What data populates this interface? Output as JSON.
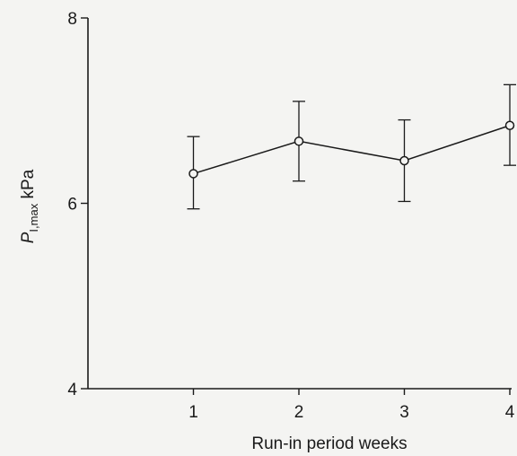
{
  "chart_data": {
    "type": "line",
    "title": "",
    "xlabel": "Run-in period  weeks",
    "ylabel_main": "P",
    "ylabel_sub": "I,max",
    "ylabel_unit": " kPa",
    "xlim": [
      0,
      4
    ],
    "ylim": [
      4,
      8
    ],
    "xticks": [
      1,
      2,
      3,
      4
    ],
    "xtick_labels": [
      "1",
      "2",
      "3",
      "4"
    ],
    "yticks": [
      4,
      6,
      8
    ],
    "ytick_labels": [
      "4",
      "6",
      "8"
    ],
    "grid": false,
    "legend": "none",
    "series": [
      {
        "x": [
          1,
          2,
          3,
          4
        ],
        "y": [
          6.32,
          6.67,
          6.46,
          6.84
        ],
        "err_low": [
          5.94,
          6.24,
          6.02,
          6.41
        ],
        "err_high": [
          6.72,
          7.1,
          6.9,
          7.28
        ],
        "marker": "open-circle",
        "color": "#1a1a1a"
      }
    ]
  }
}
